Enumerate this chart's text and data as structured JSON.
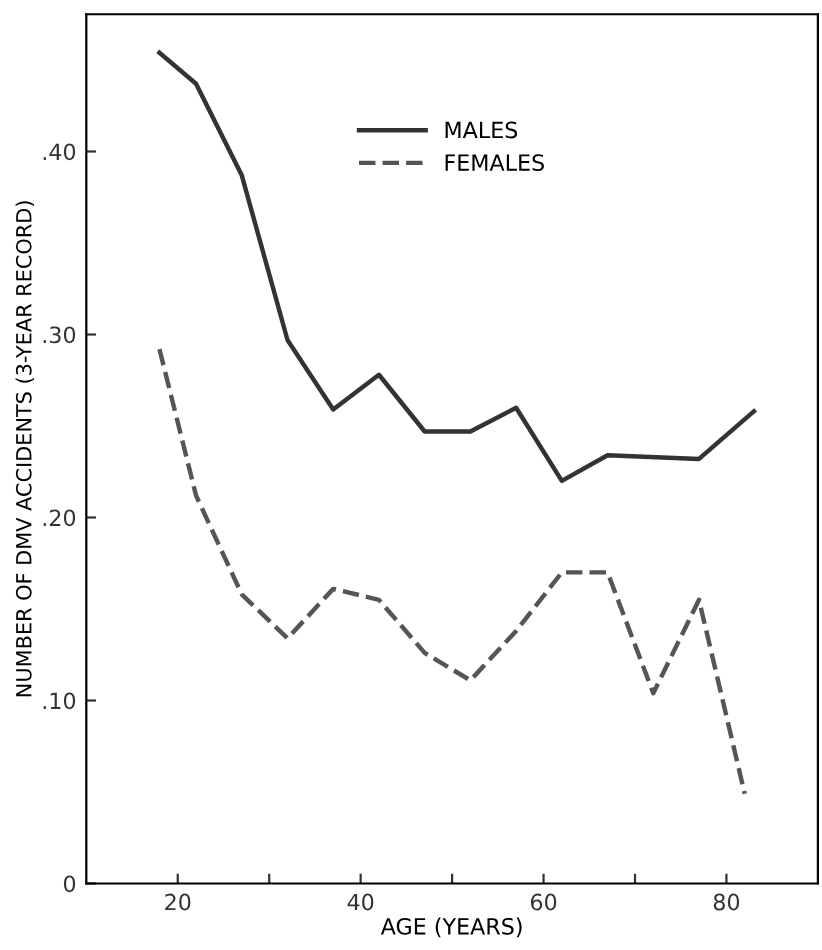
{
  "chart_data": {
    "type": "line",
    "xlabel": "AGE (YEARS)",
    "ylabel": "NUMBER OF DMV ACCIDENTS (3-YEAR RECORD)",
    "xlim": [
      10,
      90
    ],
    "xticks": [
      20,
      {
        "value": 30,
        "label": null
      },
      40,
      {
        "value": 50,
        "label": null
      },
      60,
      {
        "value": 70,
        "label": null
      },
      80
    ],
    "ylim": [
      0,
      0.475
    ],
    "yticks": [
      {
        "value": 0,
        "label": "0"
      },
      {
        "value": 0.1,
        "label": ".10"
      },
      {
        "value": 0.2,
        "label": ".20"
      },
      {
        "value": 0.3,
        "label": ".30"
      },
      {
        "value": 0.4,
        "label": ".40"
      }
    ],
    "grid": false,
    "legend": "top",
    "marker": "none",
    "series": [
      {
        "name": "MALES",
        "color": "#333333",
        "line_style": "solid",
        "x": [
          18,
          22,
          27,
          32,
          37,
          42,
          47,
          52,
          57,
          62,
          67,
          77,
          83
        ],
        "values": [
          0.454,
          0.437,
          0.387,
          0.297,
          0.259,
          0.278,
          0.247,
          0.247,
          0.26,
          0.22,
          0.234,
          0.232,
          0.258
        ]
      },
      {
        "name": "FEMALES",
        "color": "#555555",
        "line_style": "dashed",
        "x": [
          18,
          22,
          27,
          32,
          37,
          42,
          47,
          52,
          57,
          62,
          67,
          72,
          77,
          82
        ],
        "values": [
          0.292,
          0.212,
          0.158,
          0.134,
          0.161,
          0.155,
          0.126,
          0.111,
          0.138,
          0.17,
          0.17,
          0.104,
          0.155,
          0.049
        ]
      }
    ]
  }
}
